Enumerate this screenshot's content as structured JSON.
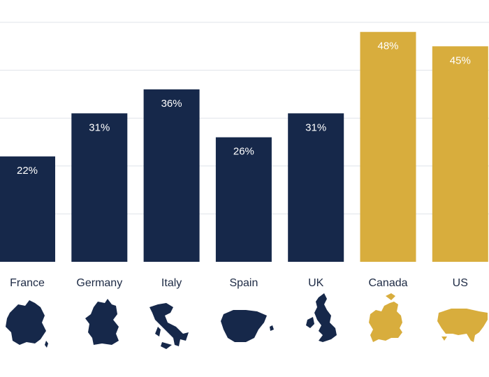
{
  "chart_data": {
    "type": "bar",
    "categories": [
      "France",
      "Germany",
      "Italy",
      "Spain",
      "UK",
      "Canada",
      "US"
    ],
    "values": [
      22,
      31,
      36,
      26,
      31,
      48,
      45
    ],
    "value_labels": [
      "22%",
      "31%",
      "36%",
      "26%",
      "31%",
      "48%",
      "45%"
    ],
    "ylim": [
      0,
      50
    ],
    "grid": true,
    "bar_colors": [
      "#16284a",
      "#16284a",
      "#16284a",
      "#16284a",
      "#16284a",
      "#d8ad3d",
      "#d8ad3d"
    ],
    "icons": [
      "france-map-icon",
      "germany-map-icon",
      "italy-map-icon",
      "spain-map-icon",
      "uk-map-icon",
      "canada-map-icon",
      "us-map-icon"
    ]
  }
}
